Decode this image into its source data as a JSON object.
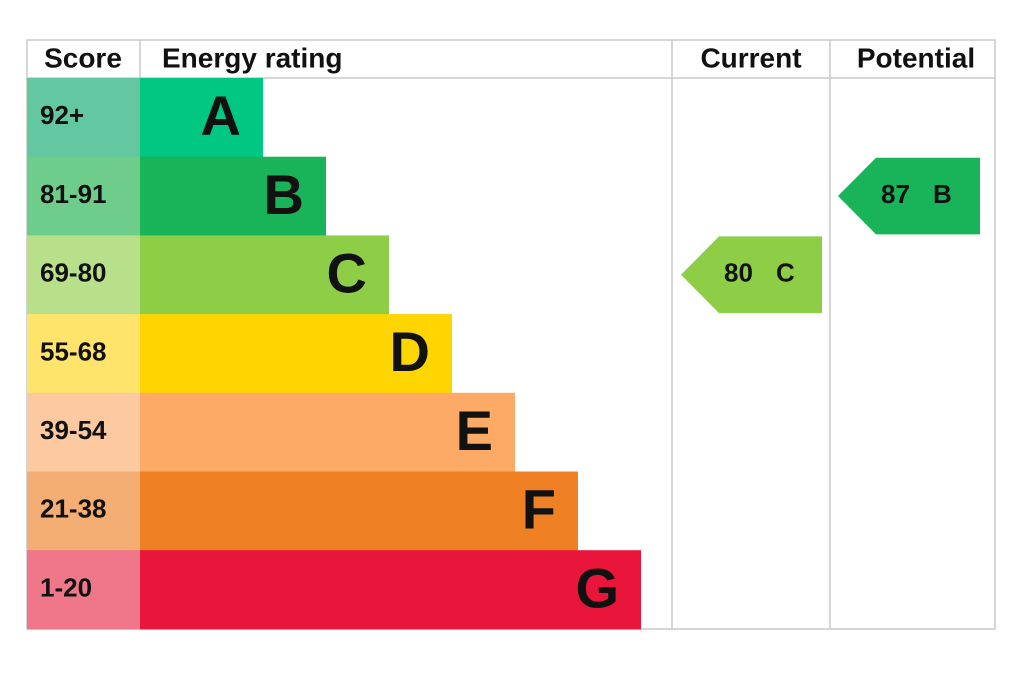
{
  "header": {
    "score": "Score",
    "rating": "Energy rating",
    "current": "Current",
    "potential": "Potential"
  },
  "bands": [
    {
      "score": "92+",
      "letter": "A",
      "color": "#00c781",
      "score_color": "#63c7a2"
    },
    {
      "score": "81-91",
      "letter": "B",
      "color": "#19b459",
      "score_color": "#6fcd8b"
    },
    {
      "score": "69-80",
      "letter": "C",
      "color": "#8dce46",
      "score_color": "#b8e08a"
    },
    {
      "score": "55-68",
      "letter": "D",
      "color": "#ffd500",
      "score_color": "#ffe36b"
    },
    {
      "score": "39-54",
      "letter": "E",
      "color": "#fcaa65",
      "score_color": "#fdc9a0"
    },
    {
      "score": "21-38",
      "letter": "F",
      "color": "#ef8023",
      "score_color": "#f4ad72"
    },
    {
      "score": "1-20",
      "letter": "G",
      "color": "#e9153b",
      "score_color": "#f0768a"
    }
  ],
  "current": {
    "value": 80,
    "letter": "C"
  },
  "potential": {
    "value": 87,
    "letter": "B"
  }
}
